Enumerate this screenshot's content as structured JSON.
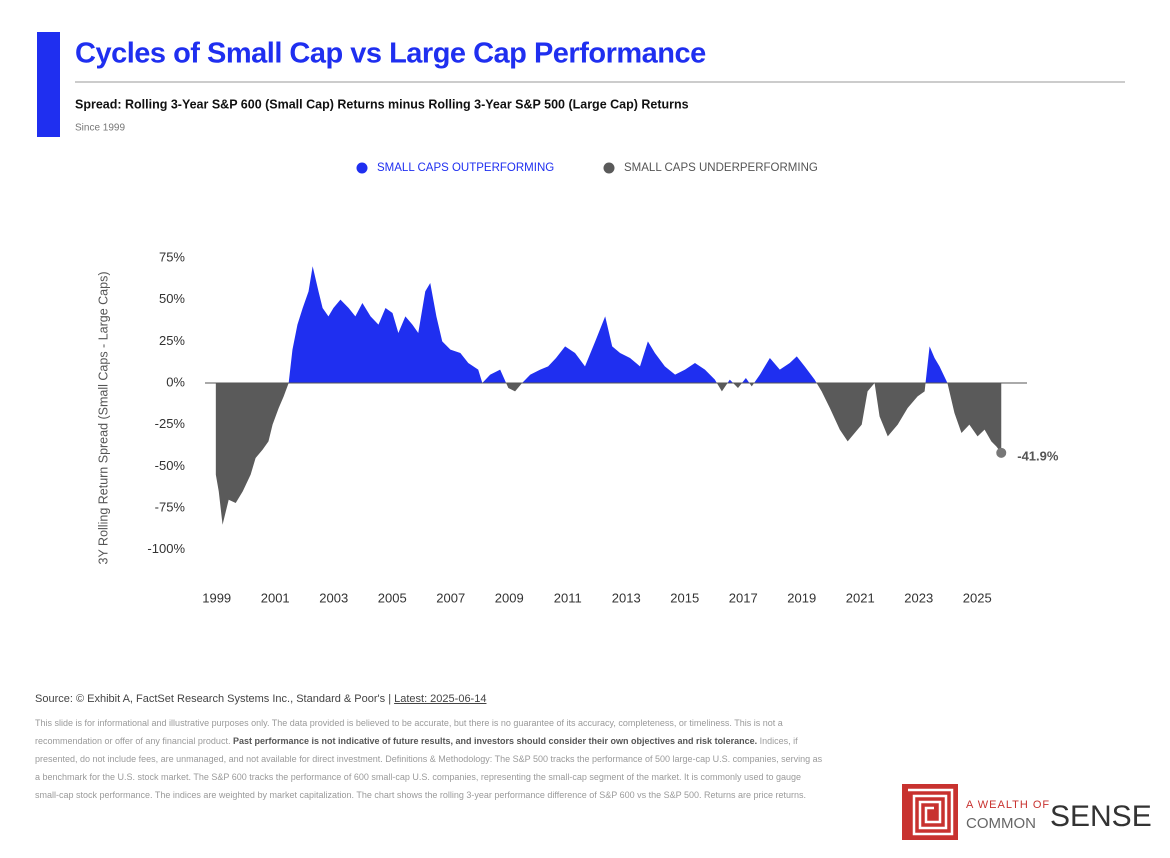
{
  "chart_data": {
    "type": "area",
    "title": "Cycles of Small Cap vs Large Cap Performance",
    "subtitle": "Spread: Rolling 3-Year S&P 600 (Small Cap) Returns minus Rolling 3-Year S&P 500 (Large Cap) Returns",
    "note": "Since 1999",
    "ylabel": "3Y Rolling Return Spread (Small Caps - Large Caps)",
    "legend": [
      {
        "name": "SMALL CAPS OUTPERFORMING",
        "color": "#1f2ff0"
      },
      {
        "name": "SMALL CAPS UNDERPERFORMING",
        "color": "#5a5a5a"
      }
    ],
    "x": [
      1998.97,
      1999.07,
      1999.2,
      1999.41,
      1999.65,
      1999.89,
      2000.16,
      2000.33,
      2000.57,
      2000.77,
      2000.91,
      2001.12,
      2001.29,
      2001.46,
      2001.59,
      2001.76,
      2001.94,
      2002.14,
      2002.28,
      2002.48,
      2002.62,
      2002.82,
      2002.99,
      2003.23,
      2003.51,
      2003.74,
      2003.98,
      2004.26,
      2004.53,
      2004.77,
      2005.01,
      2005.21,
      2005.45,
      2005.69,
      2005.89,
      2006.13,
      2006.3,
      2006.51,
      2006.71,
      2006.99,
      2007.33,
      2007.6,
      2007.94,
      2008.08,
      2008.35,
      2008.69,
      2008.97,
      2009.2,
      2009.44,
      2009.72,
      2010.06,
      2010.33,
      2010.6,
      2010.91,
      2011.25,
      2011.59,
      2011.94,
      2012.28,
      2012.52,
      2012.79,
      2013.13,
      2013.47,
      2013.74,
      2013.98,
      2014.32,
      2014.67,
      2015.01,
      2015.35,
      2015.69,
      2016.03,
      2016.27,
      2016.54,
      2016.82,
      2017.09,
      2017.29,
      2017.57,
      2017.91,
      2018.25,
      2018.59,
      2018.83,
      2019.1,
      2019.44,
      2019.68,
      2019.96,
      2020.3,
      2020.57,
      2020.81,
      2021.05,
      2021.25,
      2021.49,
      2021.66,
      2021.94,
      2022.28,
      2022.62,
      2022.96,
      2023.2,
      2023.37,
      2023.54,
      2023.71,
      2023.98,
      2024.22,
      2024.46,
      2024.73,
      2025.01,
      2025.25,
      2025.48,
      2025.65,
      2025.82
    ],
    "values": [
      -55,
      -65,
      -85,
      -70,
      -72,
      -65,
      -55,
      -45,
      -40,
      -35,
      -25,
      -15,
      -8,
      0,
      20,
      35,
      45,
      55,
      70,
      55,
      45,
      40,
      45,
      50,
      45,
      40,
      48,
      40,
      35,
      45,
      42,
      30,
      40,
      35,
      30,
      55,
      60,
      40,
      25,
      20,
      18,
      12,
      8,
      0,
      5,
      8,
      -3,
      -5,
      0,
      5,
      8,
      10,
      15,
      22,
      18,
      10,
      25,
      40,
      22,
      18,
      15,
      10,
      25,
      18,
      10,
      5,
      8,
      12,
      8,
      2,
      -5,
      2,
      -3,
      3,
      -2,
      5,
      15,
      8,
      12,
      16,
      10,
      2,
      -5,
      -15,
      -28,
      -35,
      -30,
      -25,
      -5,
      0,
      -20,
      -32,
      -25,
      -15,
      -8,
      -5,
      22,
      15,
      10,
      0,
      -18,
      -30,
      -25,
      -32,
      -28,
      -35,
      -38,
      -41.9
    ],
    "annotations": [
      {
        "x": 2025.82,
        "y": -41.9,
        "label": "-41.9%"
      }
    ],
    "xlim": [
      1998.6,
      2026.7
    ],
    "xticks": [
      1999,
      2001,
      2003,
      2005,
      2007,
      2009,
      2011,
      2013,
      2015,
      2017,
      2019,
      2021,
      2023,
      2025
    ],
    "ylim": [
      -105,
      90
    ],
    "yticks": [
      {
        "value": 75,
        "label": "75%"
      },
      {
        "value": 50,
        "label": "50%"
      },
      {
        "value": 25,
        "label": "25%"
      },
      {
        "value": 0,
        "label": "0%"
      },
      {
        "value": -25,
        "label": "-25%"
      },
      {
        "value": -50,
        "label": "-50%"
      },
      {
        "value": -75,
        "label": "-75%"
      },
      {
        "value": -100,
        "label": "-100%"
      }
    ],
    "grid": false
  },
  "footer": {
    "source": [
      "Source: © Exhibit A, FactSet Research Systems Inc., Standard & Poor's | ",
      "Latest: 2025-06-14"
    ],
    "disclaimer": [
      {
        "text": "This slide is for informational and illustrative purposes only. The data provided is believed to be accurate, but there is no guarantee of its accuracy, completeness, or timeliness. This is not a recommendation or offer of any financial product. ",
        "bold": false
      },
      {
        "text": "Past performance is not indicative of future results, and investors should consider their own objectives and risk tolerance.",
        "bold": true
      },
      {
        "text": " Indices, if presented, do not include fees, are unmanaged, and not available for direct investment. Definitions & Methodology: The S&P 500 tracks the performance of 500 large-cap U.S. companies, serving as a benchmark for the U.S. stock market. The S&P 600 tracks the performance of 600 small-cap U.S. companies, representing the small-cap segment of the market. It is commonly used to gauge small-cap stock performance. The indices are weighted by market capitalization. The chart shows the rolling 3-year performance difference of S&P 600 vs the S&P 500. Returns are price returns.",
        "bold": false
      }
    ],
    "logo": [
      "A WEALTH OF",
      "COMMON",
      "SENSE"
    ]
  }
}
